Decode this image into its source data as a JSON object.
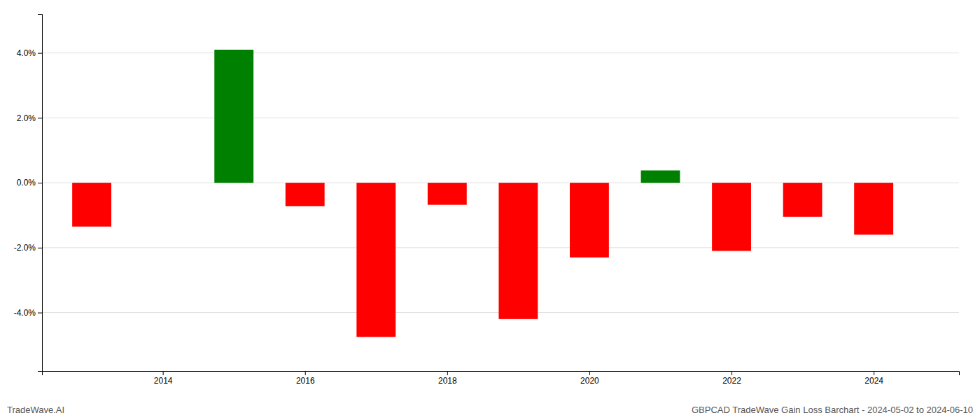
{
  "chart_data": {
    "type": "bar",
    "x": [
      2013,
      2015,
      2016,
      2017,
      2018,
      2019,
      2020,
      2021,
      2022,
      2023,
      2024
    ],
    "values": [
      -1.35,
      4.1,
      -0.72,
      -4.75,
      -0.68,
      -4.2,
      -2.3,
      0.38,
      -2.1,
      -1.05,
      -1.6
    ],
    "colors": [
      "#ff0000",
      "#008000",
      "#ff0000",
      "#ff0000",
      "#ff0000",
      "#ff0000",
      "#ff0000",
      "#008000",
      "#ff0000",
      "#ff0000",
      "#ff0000"
    ],
    "xlim": [
      2012.3,
      2025.2
    ],
    "xticks": [
      2014,
      2016,
      2018,
      2020,
      2022,
      2024
    ],
    "ylim": [
      -5.8,
      5.2
    ],
    "yticks": [
      {
        "value": -4.0,
        "label": "-4.0%"
      },
      {
        "value": -2.0,
        "label": "-2.0%"
      },
      {
        "value": 0.0,
        "label": "0.0%"
      },
      {
        "value": 2.0,
        "label": "2.0%"
      },
      {
        "value": 4.0,
        "label": "4.0%"
      }
    ],
    "grid": true,
    "annotations": [
      "TradeWave.AI",
      "GBPCAD TradeWave Gain Loss Barchart - 2024-05-02 to 2024-06-10"
    ]
  }
}
